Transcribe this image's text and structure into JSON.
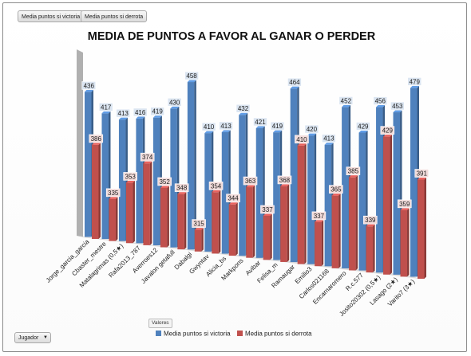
{
  "ui": {
    "field_victoria": "Media puntos si victoria",
    "field_derrota": "Media puntos si derrota",
    "axis_field": "Jugador",
    "values_field": "Valores"
  },
  "colors": {
    "victoria": "#4f81bd",
    "derrota": "#c0504d",
    "victoria_label_bg": "#dbe5f1",
    "derrota_label_bg": "#f2dcdb"
  },
  "chart_data": {
    "type": "bar",
    "title": "MEDIA DE PUNTOS A FAVOR AL GANAR O PERDER",
    "categories": [
      "Jorge_garcia_garcia",
      "Cbaster_mestre",
      "Matalagrimas (0,5★)",
      "Rafa2013_787",
      "Averroes12",
      "Javalon getafull",
      "Dabalgi",
      "Gwyntav",
      "Alicia_bs",
      "Markpons",
      "Avibar",
      "Felisa_m",
      "Ramaugar",
      "Emilio3",
      "Carlos021168",
      "Encarnaromero",
      "R.c.577",
      "Josito20302 (0,5★)",
      "Lasago (2★)",
      "Varito7 (3★)"
    ],
    "series": [
      {
        "name": "Media puntos si victoria",
        "values": [
          436,
          417,
          413,
          416,
          419,
          430,
          458,
          410,
          413,
          432,
          421,
          419,
          464,
          420,
          413,
          452,
          429,
          456,
          453,
          479
        ]
      },
      {
        "name": "Media puntos si derrota",
        "values": [
          386,
          335,
          353,
          374,
          352,
          348,
          315,
          354,
          344,
          363,
          337,
          368,
          410,
          337,
          365,
          385,
          339,
          429,
          359,
          391
        ]
      }
    ],
    "legend_position": "bottom",
    "grid": false
  }
}
